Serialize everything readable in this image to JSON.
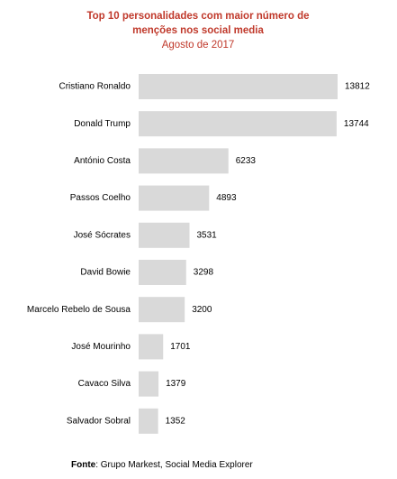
{
  "chart_data": {
    "type": "bar",
    "orientation": "horizontal",
    "title": "Top 10 personalidades com maior número de menções nos social media",
    "subtitle": "Agosto de 2017",
    "categories": [
      "Cristiano Ronaldo",
      "Donald Trump",
      "António Costa",
      "Passos Coelho",
      "José Sócrates",
      "David Bowie",
      "Marcelo Rebelo de Sousa",
      "José Mourinho",
      "Cavaco Silva",
      "Salvador Sobral"
    ],
    "values": [
      13812,
      13744,
      6233,
      4893,
      3531,
      3298,
      3200,
      1701,
      1379,
      1352
    ],
    "color": "#d9d9d9",
    "source": {
      "label": "Fonte",
      "text": ": Grupo Markest, Social Media Explorer"
    }
  }
}
